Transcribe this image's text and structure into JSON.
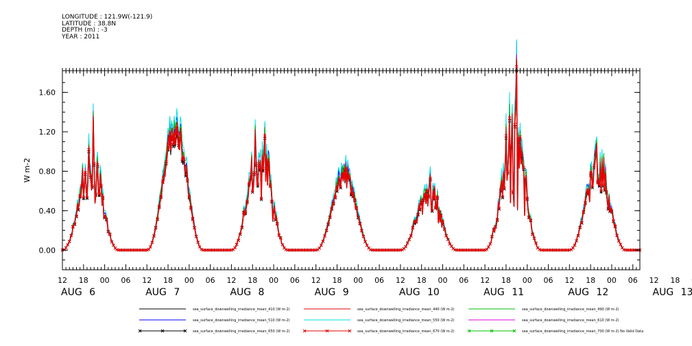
{
  "header": {
    "lines": [
      "LONGITUDE : 121.9W(-121.9)",
      "LATITUDE : 38.8N",
      "DEPTH (m) : -3",
      "YEAR : 2011"
    ]
  },
  "chart_data": {
    "type": "line",
    "title": "",
    "ylabel": "W m-2",
    "xlabel": "",
    "ylim": [
      -0.2,
      1.82
    ],
    "yticks": [
      0.0,
      0.4,
      0.8,
      1.2,
      1.6
    ],
    "ytick_labels": [
      "0.00",
      "0.40",
      "0.80",
      "1.20",
      "1.60"
    ],
    "x_start_hour": 12,
    "x_end_hour": 176,
    "hour_ticks": [
      "12",
      "18",
      "00",
      "06",
      "12",
      "18",
      "00",
      "06",
      "12",
      "18",
      "00",
      "06",
      "12",
      "18",
      "00",
      "06",
      "12",
      "18",
      "00",
      "06",
      "12",
      "18",
      "00",
      "06",
      "12",
      "18",
      "00",
      "06",
      "12",
      "18",
      "00",
      "06"
    ],
    "day_labels": [
      "AUG 6",
      "AUG 7",
      "AUG 8",
      "AUG 9",
      "AUG 10",
      "AUG 11",
      "AUG 12",
      "AUG 13"
    ],
    "grid": false,
    "legend_position": "bottom",
    "days": [
      {
        "rise": 12,
        "set": 20,
        "peak": 0.85,
        "spiky": 0.35
      },
      {
        "rise": 12,
        "set": 20,
        "peak": 1.3,
        "spiky": 0.1
      },
      {
        "rise": 13,
        "set": 20,
        "peak": 1.0,
        "spiky": 0.45
      },
      {
        "rise": 13,
        "set": 20,
        "peak": 0.8,
        "spiky": 0.1
      },
      {
        "rise": 13,
        "set": 21,
        "peak": 0.62,
        "spiky": 0.3
      },
      {
        "rise": 12,
        "set": 20,
        "peak": 1.05,
        "spiky": 0.55
      },
      {
        "rise": 13,
        "set": 20,
        "peak": 0.9,
        "spiky": 0.25
      }
    ],
    "series": [
      {
        "name": "sea_surface_downwelling_irradiance_mean_410 (W m-2)",
        "color": "#000000",
        "marker": "none",
        "scale": 0.93
      },
      {
        "name": "sea_surface_downwelling_irradiance_mean_440 (W m-2)",
        "color": "#e60000",
        "marker": "none",
        "scale": 0.96
      },
      {
        "name": "sea_surface_downwelling_irradiance_mean_490 (W m-2)",
        "color": "#00c000",
        "marker": "none",
        "scale": 0.99
      },
      {
        "name": "sea_surface_downwelling_irradiance_mean_510 (W m-2)",
        "color": "#0000ff",
        "marker": "none",
        "scale": 1.02
      },
      {
        "name": "sea_surface_downwelling_irradiance_mean_550 (W m-2)",
        "color": "#00e0e0",
        "marker": "none",
        "scale": 1.06
      },
      {
        "name": "sea_surface_downwelling_irradiance_mean_610 (W m-2)",
        "color": "#e000e0",
        "marker": "none",
        "scale": 0.97
      },
      {
        "name": "sea_surface_downwelling_irradiance_mean_650 (W m-2)",
        "color": "#000000",
        "marker": "x",
        "scale": 0.9
      },
      {
        "name": "sea_surface_downwelling_irradiance_mean_670 (W m-2)",
        "color": "#e60000",
        "marker": "x",
        "scale": 0.92
      },
      {
        "name": "sea_surface_downwelling_irradiance_mean_700 (W m-2) No Valid Data",
        "color": "#00c000",
        "marker": "x",
        "scale": 0
      }
    ]
  }
}
